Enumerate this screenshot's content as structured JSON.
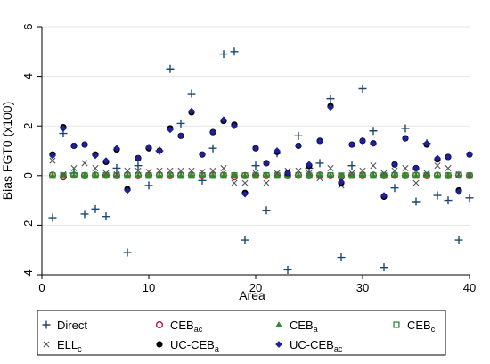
{
  "chart_data": {
    "type": "scatter",
    "xlabel": "Area",
    "ylabel": "Bias FGT0 (x100)",
    "xlim": [
      0,
      40
    ],
    "ylim": [
      -4,
      6
    ],
    "xticks": [
      0,
      10,
      20,
      30,
      40
    ],
    "yticks": [
      -4,
      -2,
      0,
      2,
      4,
      6
    ],
    "grid": "horizontal",
    "legend_position": "bottom",
    "x": [
      1,
      2,
      3,
      4,
      5,
      6,
      7,
      8,
      9,
      10,
      11,
      12,
      13,
      14,
      15,
      16,
      17,
      18,
      19,
      20,
      21,
      22,
      23,
      24,
      25,
      26,
      27,
      28,
      29,
      30,
      31,
      32,
      33,
      34,
      35,
      36,
      37,
      38,
      39,
      40
    ],
    "series": [
      {
        "name": "Direct",
        "name_base": "Direct",
        "name_sub": "",
        "marker": "plus",
        "color": "#1a476f",
        "values": [
          -1.7,
          1.7,
          0.1,
          -1.55,
          -1.35,
          -1.65,
          0.3,
          -3.1,
          0.4,
          -0.4,
          1.0,
          4.3,
          2.1,
          3.3,
          -0.2,
          1.1,
          4.9,
          5.0,
          -2.6,
          0.4,
          -1.4,
          0.9,
          -3.8,
          1.6,
          0.3,
          0.5,
          3.1,
          -3.3,
          0.4,
          3.5,
          1.8,
          -3.7,
          -0.5,
          1.9,
          -1.05,
          1.3,
          -0.8,
          -1.0,
          -2.6,
          -0.9
        ]
      },
      {
        "name": "CEBac",
        "name_base": "CEB",
        "name_sub": "ac",
        "marker": "circle-open",
        "color": "#c10534",
        "values": [
          0.02,
          -0.05,
          0.02,
          0.0,
          0.02,
          0.01,
          0.0,
          0.02,
          0.0,
          0.01,
          0.02,
          0.0,
          0.01,
          0.02,
          0.0,
          0.01,
          0.02,
          -0.05,
          0.0,
          0.01,
          0.0,
          0.02,
          0.0,
          0.01,
          0.0,
          0.02,
          0.0,
          -0.05,
          0.01,
          0.0,
          0.02,
          0.0,
          0.01,
          0.0,
          0.02,
          0.0,
          0.01,
          0.0,
          0.02,
          0.0
        ]
      },
      {
        "name": "CEBa",
        "name_base": "CEB",
        "name_sub": "a",
        "marker": "triangle",
        "color": "#2e8b2e",
        "values": [
          0.0,
          0.02,
          0.0,
          0.01,
          0.0,
          0.02,
          0.0,
          0.01,
          0.0,
          0.02,
          0.0,
          0.01,
          0.0,
          0.02,
          0.0,
          0.01,
          0.0,
          0.02,
          0.0,
          0.01,
          0.0,
          0.02,
          0.0,
          0.01,
          0.0,
          0.02,
          0.0,
          0.01,
          0.0,
          0.02,
          0.0,
          0.01,
          0.0,
          0.02,
          0.0,
          0.01,
          0.0,
          0.02,
          0.0,
          0.01
        ]
      },
      {
        "name": "CEBc",
        "name_base": "CEB",
        "name_sub": "c",
        "marker": "square-open",
        "color": "#2e8b2e",
        "values": [
          0.0,
          0.0,
          0.01,
          0.0,
          0.0,
          0.01,
          0.0,
          0.0,
          0.01,
          0.0,
          0.0,
          0.01,
          0.0,
          0.0,
          0.01,
          0.0,
          0.0,
          0.01,
          0.0,
          0.0,
          0.01,
          0.0,
          0.0,
          0.01,
          0.0,
          0.0,
          0.01,
          0.0,
          0.0,
          0.01,
          0.0,
          0.0,
          0.01,
          0.0,
          0.0,
          0.01,
          0.0,
          0.0,
          0.01,
          0.0
        ]
      },
      {
        "name": "ELLc",
        "name_base": "ELL",
        "name_sub": "c",
        "marker": "x",
        "color": "#555555",
        "values": [
          0.6,
          0.05,
          0.3,
          0.5,
          0.3,
          0.1,
          0.05,
          0.2,
          0.2,
          0.15,
          0.2,
          0.2,
          0.2,
          0.2,
          0.15,
          0.2,
          0.3,
          -0.3,
          -0.3,
          0.1,
          -0.3,
          0.1,
          0.2,
          0.2,
          0.1,
          -0.1,
          0.3,
          -0.4,
          0.1,
          0.2,
          0.4,
          0.1,
          0.2,
          0.3,
          -0.3,
          0.1,
          0.4,
          0.3,
          0.05,
          0.0
        ]
      },
      {
        "name": "UC-CEBa",
        "name_base": "UC-CEB",
        "name_sub": "a",
        "marker": "circle-filled",
        "color": "#000000",
        "values": [
          0.85,
          1.95,
          1.2,
          1.25,
          0.85,
          0.55,
          1.05,
          -0.55,
          0.7,
          1.1,
          1.0,
          1.9,
          1.6,
          2.55,
          0.85,
          1.75,
          2.2,
          2.05,
          -0.7,
          1.1,
          0.5,
          0.95,
          0.1,
          1.2,
          0.4,
          1.4,
          2.8,
          -0.3,
          1.25,
          1.4,
          1.3,
          -0.85,
          0.45,
          1.5,
          0.3,
          1.25,
          0.65,
          0.75,
          -0.6,
          0.85
        ]
      },
      {
        "name": "UC-CEBac",
        "name_base": "UC-CEB",
        "name_sub": "ac",
        "marker": "diamond-filled",
        "color": "#1f1f9e",
        "values": [
          0.8,
          1.9,
          1.2,
          1.25,
          0.8,
          0.6,
          1.1,
          -0.6,
          0.7,
          1.15,
          1.0,
          1.85,
          1.6,
          2.6,
          0.85,
          1.75,
          2.25,
          2.0,
          -0.75,
          1.1,
          0.5,
          1.0,
          0.1,
          1.2,
          0.45,
          1.4,
          2.75,
          -0.25,
          1.25,
          1.4,
          1.3,
          -0.8,
          0.45,
          1.5,
          0.3,
          1.3,
          0.7,
          0.75,
          -0.65,
          0.85
        ]
      }
    ]
  }
}
